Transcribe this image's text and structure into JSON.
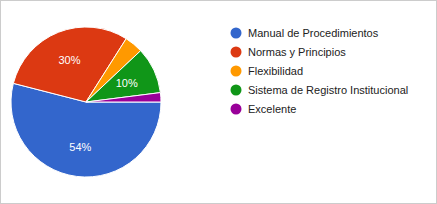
{
  "chart_data": {
    "type": "pie",
    "categories": [
      "Manual de Procedimientos",
      "Normas y Principios",
      "Flexibilidad",
      "Sistema de Registro Institucional",
      "Excelente"
    ],
    "values": [
      54,
      30,
      4,
      10,
      2
    ],
    "value_labels": [
      "54%",
      "30%",
      null,
      "10%",
      null
    ],
    "colors": [
      "#3366cc",
      "#dc3912",
      "#ff9900",
      "#109618",
      "#990099"
    ],
    "data_labels": true,
    "legend": "right"
  }
}
